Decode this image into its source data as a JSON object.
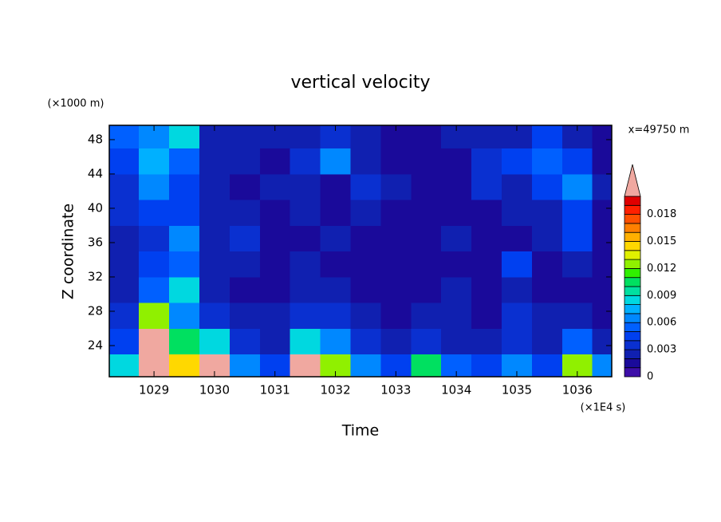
{
  "chart_data": {
    "type": "heatmap",
    "title": "vertical velocity",
    "x_label": "Time",
    "y_label": "Z coordinate",
    "x_unit": "(×1E4 s)",
    "y_unit": "(×1000 m)",
    "annotation": "x=49750 m",
    "xlim": [
      1028.26,
      1036.57
    ],
    "ylim": [
      20.37,
      49.67
    ],
    "xticks": [
      1029,
      1030,
      1031,
      1032,
      1033,
      1034,
      1035,
      1036
    ],
    "yticks": [
      24,
      28,
      32,
      36,
      40,
      44,
      48
    ],
    "x": [
      1028.5,
      1029,
      1029.5,
      1030,
      1030.5,
      1031,
      1031.5,
      1032,
      1032.5,
      1033,
      1033.5,
      1034,
      1034.5,
      1035,
      1035.5,
      1036,
      1036.5
    ],
    "y": [
      21.5,
      24.5,
      27.5,
      30.5,
      33.5,
      36.5,
      39.5,
      42.5,
      45.5,
      48.5
    ],
    "z": [
      [
        0.008,
        0.025,
        0.014,
        0.022,
        0.006,
        0.004,
        0.025,
        0.012,
        0.006,
        0.004,
        0.01,
        0.005,
        0.004,
        0.006,
        0.004,
        0.012,
        0.006
      ],
      [
        0.004,
        0.025,
        0.01,
        0.008,
        0.003,
        0.002,
        0.008,
        0.006,
        0.003,
        0.002,
        0.003,
        0.002,
        0.002,
        0.003,
        0.002,
        0.005,
        0.002
      ],
      [
        0.003,
        0.012,
        0.006,
        0.003,
        0.002,
        0.002,
        0.003,
        0.003,
        0.002,
        0.001,
        0.002,
        0.002,
        0.001,
        0.003,
        0.002,
        0.002,
        0.001
      ],
      [
        0.002,
        0.005,
        0.008,
        0.002,
        0.001,
        0.001,
        0.002,
        0.002,
        0.001,
        0.001,
        0.001,
        0.002,
        0.001,
        0.002,
        0.001,
        0.001,
        0.001
      ],
      [
        0.002,
        0.004,
        0.005,
        0.002,
        0.002,
        0.001,
        0.002,
        0.001,
        0.001,
        0.001,
        0.001,
        0.001,
        0.001,
        0.004,
        0.001,
        0.002,
        0.001
      ],
      [
        0.002,
        0.003,
        0.006,
        0.002,
        0.003,
        0.001,
        0.001,
        0.002,
        0.001,
        0.001,
        0.001,
        0.002,
        0.001,
        0.001,
        0.002,
        0.004,
        0.001
      ],
      [
        0.003,
        0.004,
        0.004,
        0.002,
        0.002,
        0.001,
        0.002,
        0.001,
        0.002,
        0.001,
        0.001,
        0.001,
        0.001,
        0.002,
        0.002,
        0.004,
        0.001
      ],
      [
        0.003,
        0.006,
        0.004,
        0.002,
        0.001,
        0.002,
        0.002,
        0.001,
        0.003,
        0.002,
        0.001,
        0.001,
        0.003,
        0.002,
        0.004,
        0.006,
        0.002
      ],
      [
        0.004,
        0.007,
        0.005,
        0.002,
        0.002,
        0.001,
        0.003,
        0.006,
        0.002,
        0.001,
        0.001,
        0.001,
        0.003,
        0.004,
        0.005,
        0.004,
        0.001
      ],
      [
        0.005,
        0.006,
        0.008,
        0.002,
        0.002,
        0.002,
        0.002,
        0.003,
        0.002,
        0.001,
        0.001,
        0.002,
        0.002,
        0.002,
        0.004,
        0.002,
        0.001
      ]
    ],
    "levels": [
      0,
      0.001,
      0.002,
      0.003,
      0.004,
      0.005,
      0.006,
      0.007,
      0.008,
      0.009,
      0.01,
      0.011,
      0.012,
      0.013,
      0.014,
      0.015,
      0.016,
      0.017,
      0.018,
      0.019,
      0.02
    ],
    "colors": [
      "#3d0ea8",
      "#1a0a9a",
      "#1020b0",
      "#0a30d0",
      "#0040f0",
      "#0060ff",
      "#0088ff",
      "#00b0ff",
      "#00d8e0",
      "#00e0a0",
      "#00e060",
      "#30f000",
      "#90f000",
      "#e0f000",
      "#ffd800",
      "#ffb000",
      "#ff8000",
      "#ff5000",
      "#ff2000",
      "#e00000"
    ],
    "over_color": "#f0a8a0",
    "colorbar_ticks": [
      0,
      0.003,
      0.006,
      0.009,
      0.012,
      0.015,
      0.018
    ]
  }
}
